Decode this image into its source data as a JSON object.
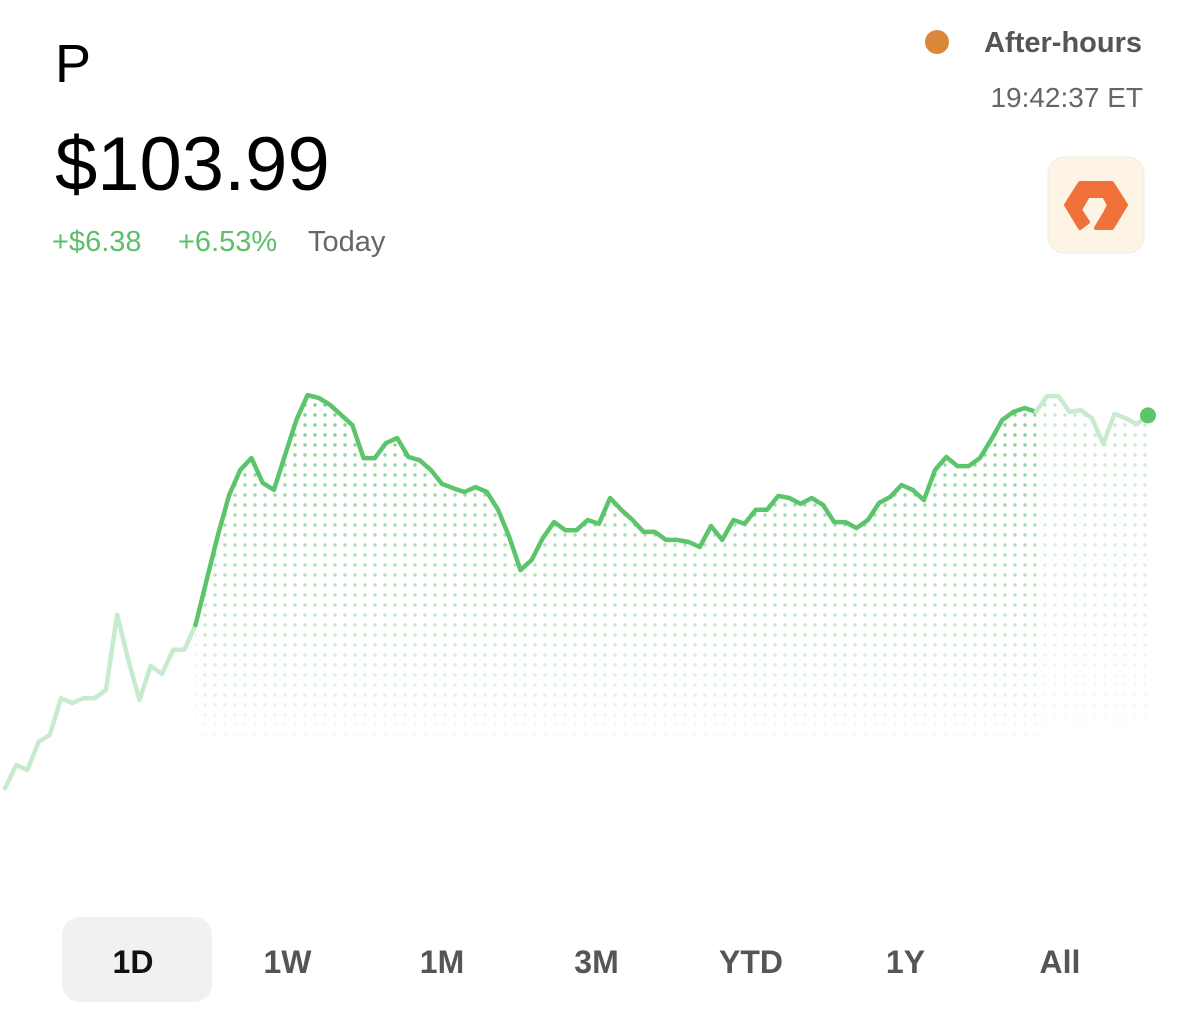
{
  "header": {
    "ticker": "P",
    "price": "$103.99",
    "change": "+$6.38",
    "change_percent": "+6.53%",
    "period": "Today",
    "session": "After-hours",
    "time": "19:42:37 ET"
  },
  "chart_data": {
    "type": "line",
    "ylim": [
      93,
      105
    ],
    "series": [
      {
        "color": "#c8ebcd",
        "values": [
          93.34,
          94.0,
          93.86,
          94.66,
          94.86,
          95.91,
          95.77,
          95.91,
          95.91,
          96.14,
          98.29,
          97.0,
          95.86,
          96.83,
          96.6,
          97.29,
          97.29,
          98.0,
          null,
          null,
          null,
          null,
          null,
          null,
          null,
          null,
          null,
          null,
          null,
          null,
          null,
          null,
          null,
          null,
          null,
          null,
          null,
          null,
          null,
          null,
          null,
          null,
          null,
          null,
          null,
          null,
          null,
          null,
          null,
          null,
          null,
          null,
          null,
          null,
          null,
          null,
          null,
          null,
          null,
          null,
          null,
          null,
          null,
          null,
          null,
          null,
          null,
          null,
          null,
          null,
          null,
          null,
          null,
          null,
          null,
          null,
          null,
          null,
          null,
          null,
          null,
          null,
          null,
          null,
          null,
          null,
          null,
          null,
          null,
          null,
          null,
          null,
          null,
          null,
          null,
          null,
          null,
          null,
          null,
          null,
          null,
          null,
          null
        ]
      },
      {
        "color": "#5cc46a",
        "values": [
          null,
          null,
          null,
          null,
          null,
          null,
          null,
          null,
          null,
          null,
          null,
          null,
          null,
          null,
          null,
          null,
          null,
          98.0,
          99.29,
          100.57,
          101.71,
          102.43,
          102.77,
          102.06,
          101.86,
          102.86,
          103.86,
          104.57,
          104.49,
          104.29,
          104.0,
          103.71,
          102.77,
          102.77,
          103.2,
          103.34,
          102.8,
          102.71,
          102.43,
          102.03,
          101.91,
          101.8,
          101.94,
          101.8,
          101.29,
          100.51,
          99.57,
          99.86,
          100.49,
          100.94,
          100.71,
          100.71,
          101.0,
          100.89,
          101.63,
          101.29,
          101.0,
          100.66,
          100.66,
          100.43,
          100.43,
          100.37,
          100.23,
          100.83,
          100.43,
          101.0,
          100.89,
          101.29,
          101.29,
          101.69,
          101.63,
          101.46,
          101.63,
          101.43,
          100.94,
          100.94,
          100.77,
          101.0,
          101.49,
          101.66,
          102.0,
          101.86,
          101.57,
          102.43,
          102.8,
          102.54,
          102.54,
          102.77,
          103.29,
          103.86,
          104.09,
          104.2,
          104.09,
          null,
          null,
          null,
          null,
          null,
          null,
          null,
          null,
          null,
          null
        ]
      },
      {
        "color": "#c8ebcd",
        "values": [
          null,
          null,
          null,
          null,
          null,
          null,
          null,
          null,
          null,
          null,
          null,
          null,
          null,
          null,
          null,
          null,
          null,
          null,
          null,
          null,
          null,
          null,
          null,
          null,
          null,
          null,
          null,
          null,
          null,
          null,
          null,
          null,
          null,
          null,
          null,
          null,
          null,
          null,
          null,
          null,
          null,
          null,
          null,
          null,
          null,
          null,
          null,
          null,
          null,
          null,
          null,
          null,
          null,
          null,
          null,
          null,
          null,
          null,
          null,
          null,
          null,
          null,
          null,
          null,
          null,
          null,
          null,
          null,
          null,
          null,
          null,
          null,
          null,
          null,
          null,
          null,
          null,
          null,
          null,
          null,
          null,
          null,
          null,
          null,
          null,
          null,
          null,
          null,
          null,
          null,
          null,
          null,
          104.09,
          104.54,
          104.54,
          104.09,
          104.14,
          103.91,
          103.17,
          104.03,
          103.91,
          103.74,
          103.99
        ]
      }
    ]
  },
  "ranges": [
    "1D",
    "1W",
    "1M",
    "3M",
    "YTD",
    "1Y",
    "All"
  ]
}
